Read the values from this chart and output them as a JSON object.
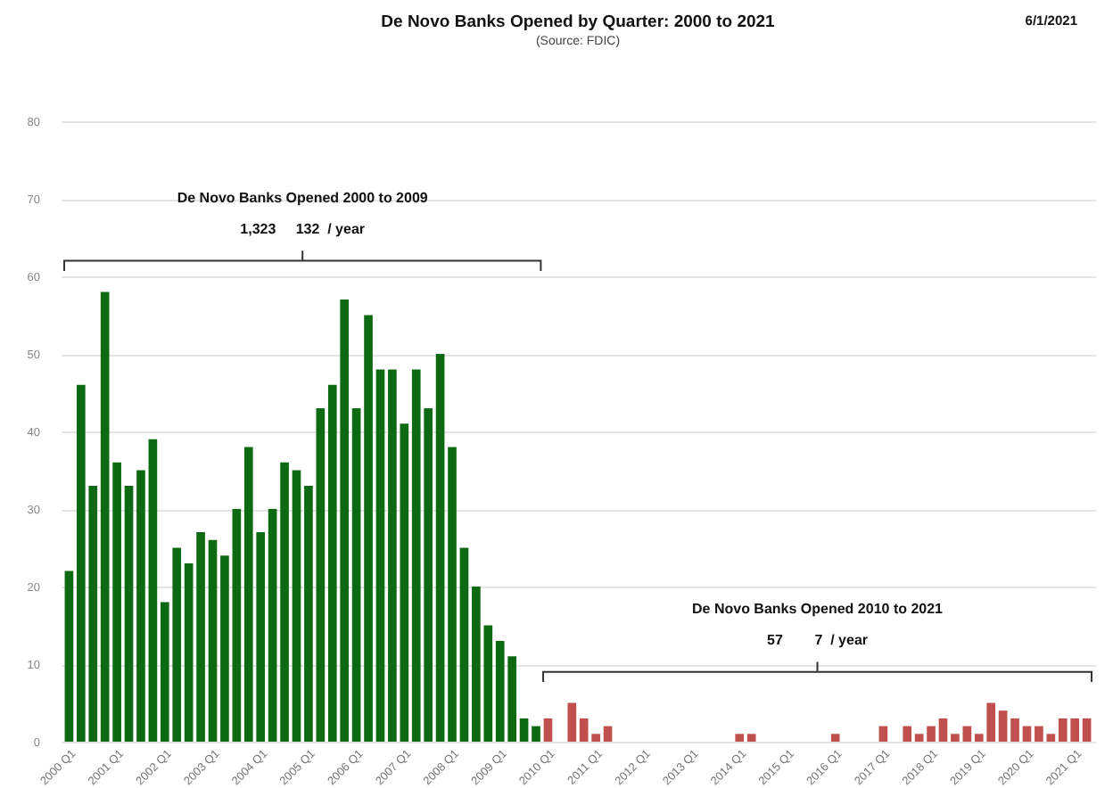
{
  "chart_data": {
    "type": "bar",
    "title": "De Novo Banks Opened by Quarter: 2000 to 2021",
    "subtitle": "(Source: FDIC)",
    "categories": [
      "2000 Q1",
      null,
      null,
      null,
      "2001 Q1",
      null,
      null,
      null,
      "2002 Q1",
      null,
      null,
      null,
      "2003 Q1",
      null,
      null,
      null,
      "2004 Q1",
      null,
      null,
      null,
      "2005 Q1",
      null,
      null,
      null,
      "2006 Q1",
      null,
      null,
      null,
      "2007 Q1",
      null,
      null,
      null,
      "2008 Q1",
      null,
      null,
      null,
      "2009 Q1",
      null,
      null,
      null,
      "2010 Q1",
      null,
      null,
      null,
      "2011 Q1",
      null,
      null,
      null,
      "2012 Q1",
      null,
      null,
      null,
      "2013 Q1",
      null,
      null,
      null,
      "2014 Q1",
      null,
      null,
      null,
      "2015 Q1",
      null,
      null,
      null,
      "2016 Q1",
      null,
      null,
      null,
      "2017 Q1",
      null,
      null,
      null,
      "2018 Q1",
      null,
      null,
      null,
      "2019 Q1",
      null,
      null,
      null,
      "2020 Q1",
      null,
      null,
      null,
      "2021 Q1",
      null
    ],
    "values": [
      22,
      46,
      33,
      58,
      36,
      33,
      35,
      39,
      18,
      25,
      23,
      27,
      26,
      24,
      30,
      38,
      27,
      30,
      36,
      35,
      33,
      43,
      46,
      57,
      43,
      55,
      48,
      48,
      41,
      48,
      43,
      50,
      38,
      25,
      20,
      15,
      13,
      11,
      3,
      2,
      3,
      0,
      5,
      3,
      1,
      2,
      0,
      0,
      0,
      0,
      0,
      0,
      0,
      0,
      0,
      0,
      1,
      1,
      0,
      0,
      0,
      0,
      0,
      0,
      1,
      0,
      0,
      0,
      2,
      0,
      2,
      1,
      2,
      3,
      1,
      2,
      1,
      5,
      4,
      3,
      2,
      2,
      1,
      3,
      3,
      3
    ],
    "colors": [
      "#0e6a12",
      "#0e6a12",
      "#0e6a12",
      "#0e6a12",
      "#0e6a12",
      "#0e6a12",
      "#0e6a12",
      "#0e6a12",
      "#0e6a12",
      "#0e6a12",
      "#0e6a12",
      "#0e6a12",
      "#0e6a12",
      "#0e6a12",
      "#0e6a12",
      "#0e6a12",
      "#0e6a12",
      "#0e6a12",
      "#0e6a12",
      "#0e6a12",
      "#0e6a12",
      "#0e6a12",
      "#0e6a12",
      "#0e6a12",
      "#0e6a12",
      "#0e6a12",
      "#0e6a12",
      "#0e6a12",
      "#0e6a12",
      "#0e6a12",
      "#0e6a12",
      "#0e6a12",
      "#0e6a12",
      "#0e6a12",
      "#0e6a12",
      "#0e6a12",
      "#0e6a12",
      "#0e6a12",
      "#0e6a12",
      "#0e6a12",
      "#c0504d",
      "#c0504d",
      "#c0504d",
      "#c0504d",
      "#c0504d",
      "#c0504d",
      "#c0504d",
      "#c0504d",
      "#c0504d",
      "#c0504d",
      "#c0504d",
      "#c0504d",
      "#c0504d",
      "#c0504d",
      "#c0504d",
      "#c0504d",
      "#c0504d",
      "#c0504d",
      "#c0504d",
      "#c0504d",
      "#c0504d",
      "#c0504d",
      "#c0504d",
      "#c0504d",
      "#c0504d",
      "#c0504d",
      "#c0504d",
      "#c0504d",
      "#c0504d",
      "#c0504d",
      "#c0504d",
      "#c0504d",
      "#c0504d",
      "#c0504d",
      "#c0504d",
      "#c0504d",
      "#c0504d",
      "#c0504d",
      "#c0504d",
      "#c0504d",
      "#c0504d",
      "#c0504d",
      "#c0504d",
      "#c0504d",
      "#c0504d",
      "#c0504d"
    ],
    "ylim": [
      0,
      80
    ],
    "yticks": [
      0,
      10,
      20,
      30,
      40,
      50,
      60,
      70,
      80
    ],
    "grid": "y",
    "annotations": [
      "De Novo Banks Opened 2000 to 2009",
      "1,323     132  / year",
      "De Novo Banks Opened 2010 to 2021",
      "57        7  / year",
      "6/1/2021"
    ]
  }
}
